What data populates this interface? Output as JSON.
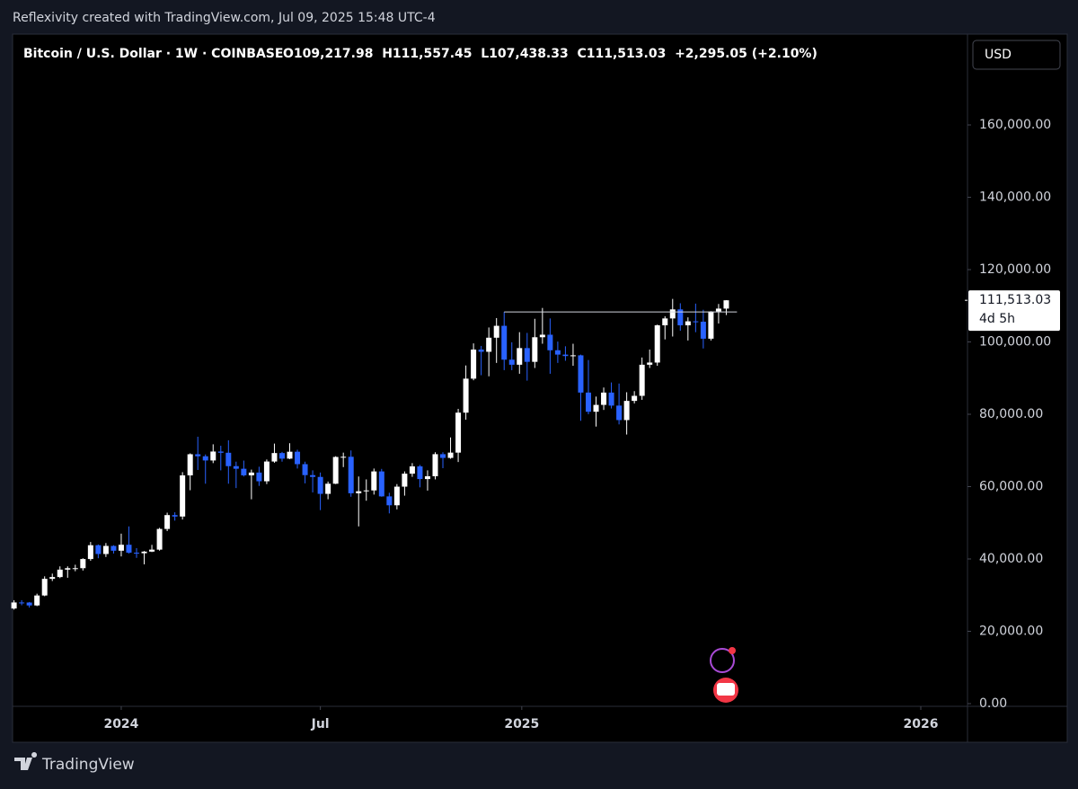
{
  "header": {
    "caption": "Reflexivity created with TradingView.com, Jul 09, 2025 15:48 UTC-4",
    "brand": "TradingView"
  },
  "chart_data": {
    "type": "candlestick",
    "title": "Bitcoin / U.S. Dollar · 1W · COINBASE",
    "legend": "O109,217.98  H111,557.45  L107,438.33  C111,513.03  +2,295.05 (+2.10%)",
    "currency": "USD",
    "last_label": "111,513.03",
    "countdown": "4d 5h",
    "up_color": "#ffffff",
    "down_color": "#2962ff",
    "xlim": [
      -0.07,
      124.5
    ],
    "xticks": [
      {
        "value": 14,
        "label": "2024"
      },
      {
        "value": 40,
        "label": "Jul"
      },
      {
        "value": 66.3,
        "label": "2025"
      },
      {
        "value": 118.4,
        "label": "2026"
      }
    ],
    "ylim": [
      -745,
      185100
    ],
    "yticks": [
      {
        "value": 0,
        "label": "0.00"
      },
      {
        "value": 20000,
        "label": "20,000.00"
      },
      {
        "value": 40000,
        "label": "40,000.00"
      },
      {
        "value": 60000,
        "label": "60,000.00"
      },
      {
        "value": 80000,
        "label": "80,000.00"
      },
      {
        "value": 100000,
        "label": "100,000.00"
      },
      {
        "value": 120000,
        "label": "120,000.00"
      },
      {
        "value": 140000,
        "label": "140,000.00"
      },
      {
        "value": 160000,
        "label": "160,000.00"
      }
    ],
    "hline": {
      "value": 108300,
      "start": 64
    },
    "open": [
      26300,
      27970,
      27950,
      27150,
      29900,
      34500,
      35000,
      37050,
      37450,
      37450,
      39980,
      43800,
      41370,
      43600,
      42280,
      43930,
      41730,
      41580,
      42030,
      42580,
      48300,
      52130,
      51730,
      63110,
      68950,
      68390,
      67230,
      69700,
      69360,
      65660,
      64940,
      63120,
      63890,
      61480,
      66940,
      69280,
      67740,
      69650,
      66210,
      63180,
      62680,
      58000,
      60800,
      68200,
      68250,
      58160,
      58720,
      58950,
      64200,
      57300,
      54840,
      59990,
      63580,
      65600,
      62090,
      62870,
      68970,
      67940,
      69400,
      80450,
      89850,
      97900,
      97280,
      101170,
      104460,
      95100,
      93700,
      98300,
      94500,
      101300,
      102000,
      97700,
      96500,
      96100,
      96300,
      86000,
      80700,
      82600,
      86000,
      82400,
      78400,
      83700,
      85100,
      93700,
      94300,
      104600,
      106500,
      109000,
      104600,
      105700,
      105600,
      100900,
      108400,
      109217.98
    ],
    "high": [
      28600,
      28600,
      28100,
      30400,
      35200,
      35950,
      37950,
      37950,
      38400,
      40200,
      44700,
      44000,
      44400,
      43800,
      47000,
      49000,
      43000,
      42200,
      43900,
      48600,
      52800,
      52900,
      64000,
      69200,
      73800,
      68900,
      71700,
      71300,
      72800,
      66900,
      67200,
      64700,
      65500,
      67500,
      71900,
      69600,
      72000,
      70200,
      66900,
      64500,
      63900,
      61400,
      68400,
      69400,
      70000,
      62800,
      62000,
      65000,
      64900,
      58300,
      60700,
      64200,
      66500,
      66000,
      64500,
      69500,
      69500,
      73600,
      81500,
      93500,
      99600,
      98900,
      104000,
      106600,
      108300,
      99900,
      102700,
      102500,
      106400,
      109400,
      106500,
      100100,
      98800,
      99500,
      96500,
      95000,
      84900,
      87400,
      88800,
      88500,
      86100,
      86400,
      95700,
      97900,
      104800,
      107100,
      111900,
      110700,
      106800,
      110600,
      108900,
      108500,
      110500,
      111557.45
    ],
    "low": [
      26000,
      27200,
      26550,
      26950,
      29700,
      33900,
      34700,
      34800,
      36600,
      36800,
      39500,
      40200,
      40550,
      41500,
      40700,
      41500,
      40300,
      38500,
      41900,
      42300,
      47700,
      50600,
      50900,
      59000,
      64600,
      60800,
      66500,
      64500,
      60800,
      59600,
      62800,
      56500,
      60200,
      60700,
      66600,
      66900,
      67600,
      65000,
      60900,
      58400,
      53500,
      56500,
      60700,
      65400,
      57200,
      49000,
      56100,
      57800,
      57200,
      52600,
      53700,
      57500,
      62700,
      59800,
      58900,
      62000,
      65100,
      67700,
      66800,
      78500,
      89400,
      90800,
      90500,
      94200,
      92200,
      92200,
      91200,
      89300,
      92800,
      99500,
      91200,
      94200,
      94800,
      93400,
      78200,
      80000,
      76600,
      81200,
      81600,
      77200,
      74400,
      83000,
      84000,
      92800,
      93400,
      100700,
      101500,
      103100,
      100400,
      102700,
      98200,
      100400,
      105100,
      107438.33
    ],
    "close": [
      27970,
      27950,
      27150,
      29900,
      34500,
      35000,
      37050,
      37450,
      37450,
      39980,
      43800,
      41370,
      43600,
      42280,
      43930,
      41730,
      41580,
      42030,
      42580,
      48300,
      52130,
      51730,
      63110,
      68950,
      68390,
      67230,
      69700,
      69360,
      65660,
      64940,
      63120,
      63890,
      61480,
      66940,
      69280,
      67740,
      69650,
      66210,
      63180,
      62680,
      58000,
      60800,
      68200,
      68250,
      58160,
      58720,
      58950,
      64200,
      57300,
      54840,
      59990,
      63580,
      65600,
      62090,
      62870,
      68970,
      67940,
      69400,
      80450,
      89850,
      97900,
      97280,
      101170,
      104460,
      95100,
      93700,
      98300,
      94500,
      101300,
      102000,
      97700,
      96500,
      96100,
      96300,
      86000,
      80700,
      82600,
      86000,
      82400,
      78400,
      83700,
      85100,
      93700,
      94300,
      104600,
      106500,
      109000,
      104600,
      105700,
      105600,
      100900,
      108400,
      109217.98,
      111513.03
    ]
  }
}
